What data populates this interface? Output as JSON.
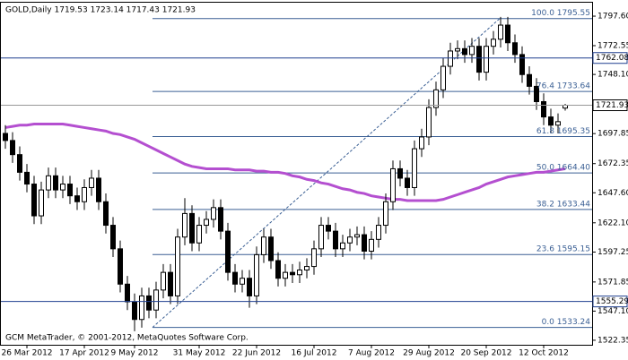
{
  "chart_data": {
    "type": "candlestick",
    "header": "GOLD,Daily  1719.53 1723.14 1717.43 1721.93",
    "footer": "GCM MetaTrader, © 2001-2012, MetaQuotes Software Corp.",
    "categories": [
      null,
      null,
      null,
      "26 Mar 2012",
      null,
      null,
      null,
      null,
      null,
      null,
      null,
      "17 Apr 2012",
      null,
      null,
      null,
      null,
      null,
      null,
      "9 May 2012",
      null,
      null,
      null,
      null,
      null,
      null,
      null,
      null,
      "31 May 2012",
      null,
      null,
      null,
      null,
      null,
      null,
      null,
      "22 Jun 2012",
      null,
      null,
      null,
      null,
      null,
      null,
      null,
      "16 Jul 2012",
      null,
      null,
      null,
      null,
      null,
      null,
      null,
      "7 Aug 2012",
      null,
      null,
      null,
      null,
      null,
      null,
      null,
      "29 Aug 2012",
      null,
      null,
      null,
      null,
      null,
      null,
      null,
      "20 Sep 2012",
      null,
      null,
      null,
      null,
      null,
      null,
      null,
      "12 Oct 2012",
      null,
      null,
      null
    ],
    "open": [
      1698,
      1692,
      1680,
      1665,
      1655,
      1628,
      1650,
      1662,
      1650,
      1655,
      1645,
      1640,
      1652,
      1660,
      1640,
      1620,
      1600,
      1570,
      1555,
      1540,
      1560,
      1548,
      1565,
      1580,
      1560,
      1610,
      1630,
      1605,
      1620,
      1625,
      1635,
      1615,
      1580,
      1570,
      1575,
      1560,
      1595,
      1610,
      1590,
      1575,
      1580,
      1578,
      1582,
      1585,
      1600,
      1620,
      1615,
      1600,
      1605,
      1610,
      1612,
      1598,
      1608,
      1620,
      1640,
      1668,
      1660,
      1652,
      1685,
      1695,
      1720,
      1735,
      1755,
      1768,
      1770,
      1765,
      1772,
      1750,
      1772,
      1778,
      1790,
      1775,
      1765,
      1748,
      1738,
      1725,
      1712,
      1705,
      1719.53
    ],
    "high": [
      1705,
      1699,
      1687,
      1672,
      1662,
      1657,
      1669,
      1669,
      1662,
      1662,
      1652,
      1659,
      1667,
      1667,
      1647,
      1627,
      1607,
      1577,
      1562,
      1567,
      1567,
      1572,
      1587,
      1587,
      1617,
      1643,
      1637,
      1627,
      1632,
      1642,
      1642,
      1622,
      1587,
      1582,
      1582,
      1602,
      1617,
      1617,
      1597,
      1587,
      1587,
      1589,
      1592,
      1607,
      1627,
      1627,
      1622,
      1612,
      1617,
      1619,
      1619,
      1615,
      1627,
      1647,
      1675,
      1675,
      1667,
      1692,
      1702,
      1727,
      1742,
      1762,
      1775,
      1777,
      1777,
      1779,
      1779,
      1779,
      1785,
      1797,
      1797,
      1782,
      1772,
      1755,
      1745,
      1732,
      1719,
      1715,
      1723.14
    ],
    "low": [
      1685,
      1673,
      1658,
      1648,
      1621,
      1621,
      1643,
      1643,
      1643,
      1638,
      1633,
      1633,
      1645,
      1633,
      1613,
      1593,
      1563,
      1548,
      1530,
      1533,
      1541,
      1541,
      1558,
      1553,
      1553,
      1603,
      1598,
      1598,
      1613,
      1618,
      1608,
      1573,
      1563,
      1563,
      1550,
      1553,
      1588,
      1583,
      1568,
      1568,
      1571,
      1571,
      1575,
      1578,
      1593,
      1608,
      1593,
      1593,
      1598,
      1603,
      1591,
      1591,
      1601,
      1613,
      1633,
      1653,
      1645,
      1645,
      1678,
      1688,
      1713,
      1728,
      1748,
      1761,
      1758,
      1758,
      1743,
      1743,
      1765,
      1771,
      1768,
      1758,
      1741,
      1731,
      1718,
      1705,
      1698,
      1698,
      1717.43
    ],
    "close": [
      1692,
      1680,
      1665,
      1655,
      1628,
      1650,
      1662,
      1650,
      1655,
      1645,
      1640,
      1652,
      1660,
      1640,
      1620,
      1600,
      1570,
      1555,
      1540,
      1560,
      1548,
      1565,
      1580,
      1560,
      1610,
      1630,
      1605,
      1620,
      1625,
      1635,
      1615,
      1580,
      1570,
      1575,
      1560,
      1595,
      1610,
      1590,
      1575,
      1580,
      1578,
      1582,
      1585,
      1600,
      1620,
      1615,
      1600,
      1605,
      1610,
      1612,
      1598,
      1608,
      1620,
      1640,
      1668,
      1660,
      1652,
      1685,
      1695,
      1720,
      1735,
      1755,
      1768,
      1770,
      1765,
      1772,
      1750,
      1772,
      1778,
      1790,
      1775,
      1765,
      1748,
      1738,
      1725,
      1712,
      1705,
      1708,
      1721.93
    ],
    "ma": {
      "color": "#b44fd0",
      "values": [
        1703,
        1704,
        1705,
        1705,
        1706,
        1706,
        1706,
        1706,
        1706,
        1705,
        1704,
        1703,
        1702,
        1701,
        1700,
        1698,
        1697,
        1695,
        1693,
        1690,
        1687,
        1684,
        1681,
        1678,
        1675,
        1672,
        1670,
        1669,
        1668,
        1668,
        1668,
        1668,
        1667,
        1667,
        1667,
        1666,
        1666,
        1665,
        1665,
        1664,
        1662,
        1661,
        1659,
        1658,
        1656,
        1655,
        1653,
        1651,
        1650,
        1648,
        1647,
        1645,
        1644,
        1643,
        1642,
        1642,
        1641,
        1641,
        1641,
        1641,
        1641,
        1642,
        1644,
        1646,
        1648,
        1650,
        1652,
        1655,
        1657,
        1659,
        1661,
        1662,
        1663,
        1664,
        1665,
        1665,
        1666,
        1667,
        1668
      ]
    },
    "ylim": [
      1518.5,
      1809.8
    ],
    "yticks": [
      {
        "value": 1797.6,
        "label": "1797.60"
      },
      1772.55,
      {
        "value": 1748.1,
        "label": "1748.10"
      },
      1697.85,
      1672.35,
      {
        "value": 1647.6,
        "label": "1647.60"
      },
      {
        "value": 1622.1,
        "label": "1622.10"
      },
      1597.25,
      1571.85,
      {
        "value": 1547.1,
        "label": "1547.10"
      },
      1522.35
    ],
    "fibo": {
      "color": "#3a5f94",
      "labels": [
        "100.0 1795.55",
        "76.4 1733.64",
        "61.8 1695.35",
        "50.0 1664.40",
        "38.2 1633.44",
        "23.6 1595.15",
        "0.0 1533.24"
      ],
      "values": [
        1795.55,
        1733.64,
        1695.35,
        1664.4,
        1633.44,
        1595.15,
        1533.24
      ]
    },
    "hlines": {
      "color": "#1f3f8f",
      "values": [
        1762.08,
        1555.29
      ],
      "labels": [
        "1762.08",
        "1555.29"
      ]
    },
    "current": {
      "value": 1721.93,
      "label": "1721.93"
    }
  }
}
